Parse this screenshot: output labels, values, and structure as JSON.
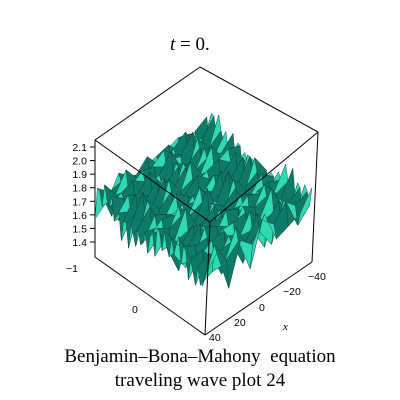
{
  "chart_data": {
    "type": "surface3d",
    "title_italic": "t",
    "title_rest": " = 0.",
    "caption_line1": "Benjamin–Bona–Mahony  equation",
    "caption_line2": "traveling wave plot 24",
    "xlabel": "x",
    "x_ticks": [
      "−40",
      "−20",
      "0",
      "20",
      "40"
    ],
    "y_ticks": [
      "−1",
      "0"
    ],
    "z_ticks": [
      "1.4",
      "1.5",
      "1.6",
      "1.7",
      "1.8",
      "1.9",
      "2.0",
      "2.1"
    ],
    "zlim": [
      1.35,
      2.15
    ],
    "grid": false,
    "surface_color": "#2fd9b5",
    "surface_dark_color": "#0e7a68",
    "edge_color": "#0b3d35",
    "box_color": "#000000"
  }
}
